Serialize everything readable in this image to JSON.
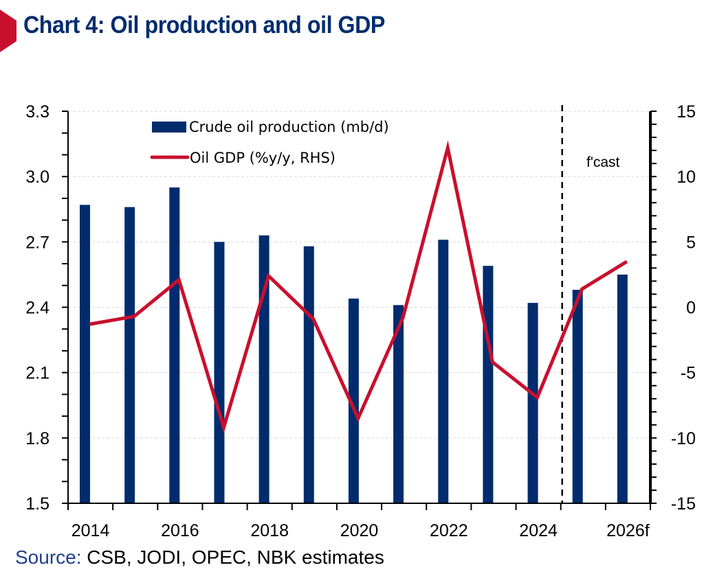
{
  "header": {
    "title": "Chart 4: Oil production and oil GDP"
  },
  "footer": {
    "source_label": "Source:",
    "source_text": " CSB, JODI, OPEC, NBK estimates"
  },
  "colors": {
    "title": "#002C6E",
    "bar": "#002C6E",
    "line": "#C8102E",
    "accent": "#C8102E",
    "source_label": "#1F3E8C"
  },
  "chart_data": {
    "type": "bar+line",
    "title": "Chart 4: Oil production and oil GDP",
    "categories": [
      "2014",
      "2015",
      "2016",
      "2017",
      "2018",
      "2019",
      "2020",
      "2021",
      "2022",
      "2023",
      "2024",
      "2025",
      "2026f"
    ],
    "x_tick_labels": [
      "2014",
      "2016",
      "2018",
      "2020",
      "2022",
      "2024",
      "2026f"
    ],
    "series": [
      {
        "name": "Crude oil production (mb/d)",
        "type": "bar",
        "axis": "left",
        "values": [
          2.87,
          2.86,
          2.95,
          2.7,
          2.73,
          2.68,
          2.44,
          2.41,
          2.71,
          2.59,
          2.42,
          2.48,
          2.55
        ]
      },
      {
        "name": "Oil GDP (%y/y, RHS)",
        "type": "line",
        "axis": "right",
        "values": [
          -1.3,
          -0.7,
          2.1,
          -9.2,
          2.4,
          -0.9,
          -8.5,
          -0.8,
          12.2,
          -4.2,
          -6.9,
          1.4,
          3.5
        ]
      }
    ],
    "y_left": {
      "range": [
        1.5,
        3.3
      ],
      "major_step": 0.3,
      "minor_step": 0.1,
      "tick_labels": [
        "1.5",
        "1.8",
        "2.1",
        "2.4",
        "2.7",
        "3.0",
        "3.3"
      ]
    },
    "y_right": {
      "range": [
        -15,
        15
      ],
      "major_step": 5,
      "minor_step": 1,
      "tick_labels": [
        "-15",
        "-10",
        "-5",
        "0",
        "5",
        "10",
        "15"
      ]
    },
    "forecast_divider_after": "2024",
    "annotation": "f'cast",
    "legend": {
      "placement": "top-left",
      "entries": [
        "Crude oil production (mb/d)",
        "Oil GDP (%y/y, RHS)"
      ]
    },
    "grid": true,
    "xlabel": "",
    "ylabel": ""
  }
}
